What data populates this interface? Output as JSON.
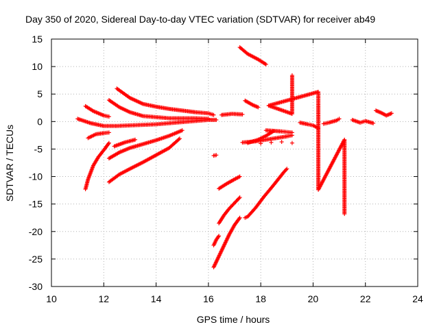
{
  "chart_data": {
    "type": "scatter",
    "title": "Day 350 of 2020, Sidereal Day-to-day VTEC variation (SDTVAR) for receiver ab49",
    "xlabel": "GPS time / hours",
    "ylabel": "SDTVAR / TECUs",
    "xlim": [
      10,
      24
    ],
    "ylim": [
      -30,
      15
    ],
    "xticks": [
      10,
      12,
      14,
      16,
      18,
      20,
      22,
      24
    ],
    "yticks": [
      -30,
      -25,
      -20,
      -15,
      -10,
      -5,
      0,
      5,
      10,
      15
    ],
    "xtick_labels": [
      "10",
      "12",
      "14",
      "16",
      "18",
      "20",
      "22",
      "24"
    ],
    "ytick_labels": [
      "-30",
      "-25",
      "-20",
      "-15",
      "-10",
      "-5",
      "0",
      "5",
      "10",
      "15"
    ],
    "grid": true,
    "legend": "none",
    "marker": "+",
    "color": "#ff0000",
    "series": [
      {
        "x": [
          11.0,
          11.5,
          12.0,
          12.5,
          13.0,
          13.5,
          14.0,
          14.5,
          15.0,
          15.5,
          16.0,
          16.3
        ],
        "y": [
          0.5,
          -0.3,
          -0.8,
          -0.8,
          -0.7,
          -0.6,
          -0.5,
          -0.3,
          -0.1,
          0.1,
          0.3,
          0.3
        ]
      },
      {
        "x": [
          11.3,
          11.6,
          12.0,
          12.2
        ],
        "y": [
          2.8,
          1.9,
          1.1,
          0.9
        ]
      },
      {
        "x": [
          11.4,
          11.7,
          12.0,
          12.2
        ],
        "y": [
          -3.0,
          -2.3,
          -2.1,
          -2.0
        ]
      },
      {
        "x": [
          11.3,
          11.4,
          11.6,
          11.8,
          12.0,
          12.2
        ],
        "y": [
          -12.3,
          -10.5,
          -8.0,
          -6.4,
          -5.2,
          -3.9
        ]
      },
      {
        "x": [
          12.2,
          12.6,
          13.0,
          13.5,
          14.0,
          14.5,
          15.0,
          15.5,
          16.0
        ],
        "y": [
          3.9,
          2.6,
          1.7,
          1.0,
          0.8,
          0.6,
          0.6,
          0.6,
          0.5
        ]
      },
      {
        "x": [
          12.5,
          13.0,
          13.5,
          14.0,
          14.5,
          15.0,
          15.5,
          16.0,
          16.2
        ],
        "y": [
          6.0,
          4.3,
          3.2,
          2.7,
          2.3,
          2.0,
          1.7,
          1.5,
          1.2
        ]
      },
      {
        "x": [
          12.4,
          12.8,
          13.2
        ],
        "y": [
          -4.5,
          -3.8,
          -3.3
        ]
      },
      {
        "x": [
          12.2,
          12.6,
          13.0,
          13.5,
          14.0,
          14.5,
          15.0
        ],
        "y": [
          -6.7,
          -5.6,
          -4.8,
          -4.1,
          -3.4,
          -2.6,
          -1.6
        ]
      },
      {
        "x": [
          12.2,
          12.6,
          13.0,
          13.5,
          14.0,
          14.5,
          14.9
        ],
        "y": [
          -11.0,
          -9.6,
          -8.6,
          -7.4,
          -6.1,
          -4.8,
          -3.1
        ]
      },
      {
        "x": [
          16.2,
          16.3
        ],
        "y": [
          -6.2,
          -6.1
        ]
      },
      {
        "x": [
          16.2,
          16.3,
          16.4
        ],
        "y": [
          -22.5,
          -21.5,
          -20.8
        ]
      },
      {
        "x": [
          16.2,
          16.4,
          16.6,
          16.8,
          17.0,
          17.2
        ],
        "y": [
          -26.5,
          -24.5,
          -22.5,
          -20.5,
          -18.8,
          -17.5
        ]
      },
      {
        "x": [
          16.4,
          16.6,
          16.8,
          17.0,
          17.2
        ],
        "y": [
          -18.5,
          -17.0,
          -15.8,
          -14.8,
          -13.8
        ]
      },
      {
        "x": [
          16.4,
          16.7,
          17.0,
          17.2
        ],
        "y": [
          -12.2,
          -11.3,
          -10.5,
          -10.0
        ]
      },
      {
        "x": [
          17.4,
          17.5,
          17.8,
          18.1,
          18.5,
          18.9,
          19.0
        ],
        "y": [
          -17.5,
          -17.3,
          -15.7,
          -13.8,
          -11.5,
          -9.1,
          -8.6
        ]
      },
      {
        "x": [
          16.5,
          16.9,
          17.3
        ],
        "y": [
          1.2,
          1.4,
          1.3
        ]
      },
      {
        "x": [
          17.2,
          17.5,
          17.9,
          18.2
        ],
        "y": [
          13.5,
          12.3,
          11.3,
          10.4
        ]
      },
      {
        "x": [
          17.4,
          17.7,
          17.9
        ],
        "y": [
          3.8,
          3.0,
          2.6
        ]
      },
      {
        "x": [
          17.3,
          17.8,
          18.2,
          18.6,
          19.0,
          19.2
        ],
        "y": [
          -3.8,
          -3.6,
          -3.3,
          -3.0,
          -2.7,
          -2.5
        ]
      },
      {
        "x": [
          17.5,
          17.9,
          18.2,
          18.5
        ],
        "y": [
          -3.9,
          -3.3,
          -2.6,
          -1.7
        ]
      },
      {
        "x": [
          18.2,
          18.5,
          18.8,
          19.0,
          19.2
        ],
        "y": [
          -1.6,
          -1.7,
          -1.8,
          -1.9,
          -2.0
        ]
      },
      {
        "x": [
          18.0,
          18.4,
          18.8,
          19.2
        ],
        "y": [
          -4.0,
          -3.8,
          -3.7,
          -3.9
        ]
      },
      {
        "x": [
          19.2,
          19.2,
          18.3,
          20.2,
          20.2,
          20.2,
          21.2,
          21.2
        ],
        "y": [
          8.4,
          1.4,
          2.9,
          5.4,
          3.1,
          -12.4,
          -3.3,
          -16.8
        ]
      },
      {
        "x": [
          19.5,
          19.8,
          20.0,
          20.2
        ],
        "y": [
          -0.2,
          -0.5,
          -0.7,
          -1.2
        ]
      },
      {
        "x": [
          20.4,
          20.6,
          20.9,
          21.0
        ],
        "y": [
          -0.4,
          -0.2,
          0.2,
          0.5
        ]
      },
      {
        "x": [
          21.5,
          21.8,
          22.0,
          22.3
        ],
        "y": [
          0.3,
          -0.2,
          0.1,
          -0.3
        ]
      },
      {
        "x": [
          22.4,
          22.6,
          22.8,
          23.0
        ],
        "y": [
          2.0,
          1.6,
          1.1,
          1.5
        ]
      }
    ]
  }
}
